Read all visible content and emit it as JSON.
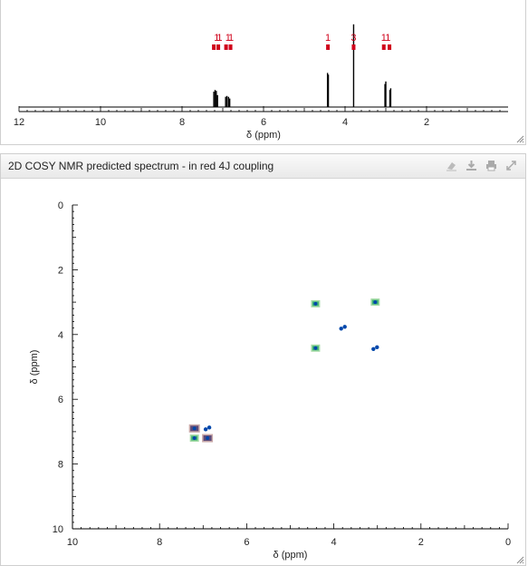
{
  "top_panel": {
    "chart_data": {
      "type": "line",
      "xlabel": "δ (ppm)",
      "xlim": [
        12,
        0
      ],
      "x_ticks": [
        "12",
        "10",
        "8",
        "6",
        "4",
        "2"
      ],
      "x_tick_values": [
        12,
        10,
        8,
        6,
        4,
        2
      ],
      "peaks": [
        {
          "x": 7.22,
          "h": 0.18
        },
        {
          "x": 7.19,
          "h": 0.2
        },
        {
          "x": 7.16,
          "h": 0.19
        },
        {
          "x": 7.13,
          "h": 0.14
        },
        {
          "x": 6.93,
          "h": 0.12
        },
        {
          "x": 6.9,
          "h": 0.13
        },
        {
          "x": 6.86,
          "h": 0.12
        },
        {
          "x": 6.83,
          "h": 0.1
        },
        {
          "x": 4.43,
          "h": 0.4
        },
        {
          "x": 4.41,
          "h": 0.38
        },
        {
          "x": 3.79,
          "h": 0.97
        },
        {
          "x": 3.02,
          "h": 0.27
        },
        {
          "x": 3.0,
          "h": 0.3
        },
        {
          "x": 2.9,
          "h": 0.2
        },
        {
          "x": 2.88,
          "h": 0.22
        }
      ],
      "annotations": [
        {
          "label": "1",
          "x": 7.15
        },
        {
          "label": "1",
          "x": 7.08
        },
        {
          "label": "1",
          "x": 6.87
        },
        {
          "label": "1",
          "x": 6.8
        },
        {
          "label": "1",
          "x": 4.42
        },
        {
          "label": "3",
          "x": 3.79
        },
        {
          "label": "1",
          "x": 3.05
        },
        {
          "label": "1",
          "x": 2.95
        }
      ],
      "markers": [
        {
          "x": 7.22
        },
        {
          "x": 7.11
        },
        {
          "x": 6.92
        },
        {
          "x": 6.81
        },
        {
          "x": 4.42
        },
        {
          "x": 3.79
        },
        {
          "x": 3.05
        },
        {
          "x": 2.91
        }
      ]
    }
  },
  "bottom_panel": {
    "title": "2D COSY NMR predicted spectrum - in red 4J coupling",
    "icons": [
      "eraser-icon",
      "download-icon",
      "print-icon",
      "expand-icon"
    ],
    "chart_data": {
      "type": "scatter",
      "xlabel": "δ (ppm)",
      "ylabel": "δ (ppm)",
      "xlim": [
        10,
        0
      ],
      "ylim": [
        0,
        10
      ],
      "x_ticks": [
        "10",
        "8",
        "6",
        "4",
        "2",
        "0"
      ],
      "x_tick_values": [
        10,
        8,
        6,
        4,
        2,
        0
      ],
      "y_ticks": [
        "0",
        "2",
        "4",
        "6",
        "8",
        "10"
      ],
      "y_tick_values": [
        0,
        2,
        4,
        6,
        8,
        10
      ],
      "colors": {
        "green": "#3cb371",
        "dark": "#5a4a7a",
        "blue": "#0047ab"
      },
      "cross_peaks": [
        {
          "x": 4.42,
          "y": 3.05,
          "kind": "green"
        },
        {
          "x": 3.05,
          "y": 3.0,
          "kind": "green"
        },
        {
          "x": 3.79,
          "y": 3.79,
          "kind": "blue"
        },
        {
          "x": 4.42,
          "y": 4.42,
          "kind": "green"
        },
        {
          "x": 3.05,
          "y": 4.42,
          "kind": "blue"
        },
        {
          "x": 7.2,
          "y": 6.9,
          "kind": "dark"
        },
        {
          "x": 6.9,
          "y": 6.9,
          "kind": "blue"
        },
        {
          "x": 7.2,
          "y": 7.2,
          "kind": "green"
        },
        {
          "x": 6.9,
          "y": 7.2,
          "kind": "dark"
        }
      ]
    }
  }
}
